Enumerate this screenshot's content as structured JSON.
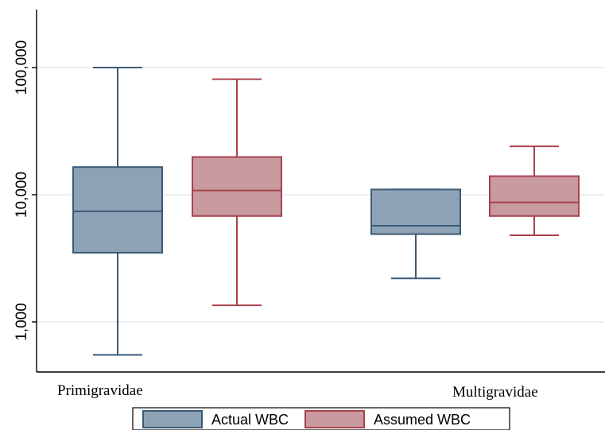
{
  "chart_data": {
    "type": "box",
    "y_scale": "log",
    "ylim": [
      600,
      300000
    ],
    "y_ticks": [
      1000,
      10000,
      100000
    ],
    "y_tick_labels": [
      "1,000",
      "10,000",
      "100,000"
    ],
    "grid": true,
    "legend_position": "bottom",
    "categories": [
      "Primigravidae",
      "Multigravidae"
    ],
    "series": [
      {
        "name": "Actual WBC",
        "color": "#8da2b4",
        "edge_color": "#3b5a78",
        "boxes": [
          {
            "min": 550,
            "q1": 3500,
            "median": 7400,
            "q3": 16500,
            "max": 100000
          },
          {
            "min": 2200,
            "q1": 4900,
            "median": 5700,
            "q3": 11000,
            "max": 11000
          }
        ]
      },
      {
        "name": "Assumed WBC",
        "color": "#c99aa0",
        "edge_color": "#a8424c",
        "boxes": [
          {
            "min": 1350,
            "q1": 6800,
            "median": 10800,
            "q3": 19800,
            "max": 81000
          },
          {
            "min": 4800,
            "q1": 6800,
            "median": 8700,
            "q3": 14000,
            "max": 24000
          }
        ]
      }
    ]
  }
}
